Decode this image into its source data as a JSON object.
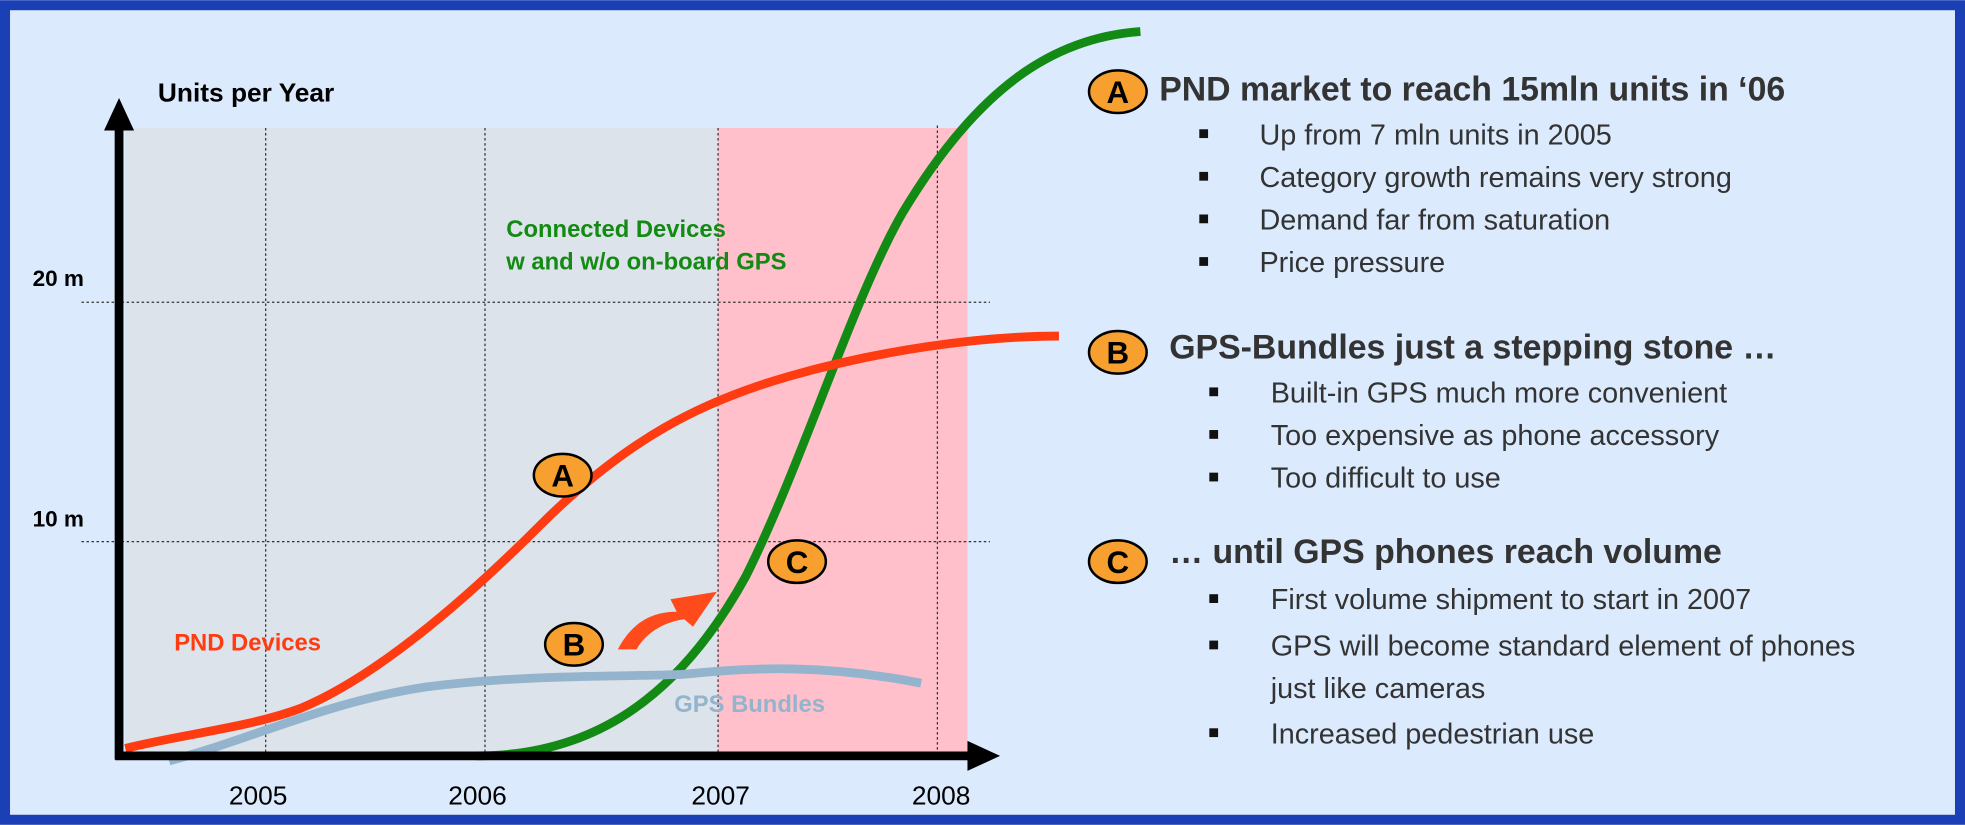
{
  "chart": {
    "y_axis_label": "Units per Year",
    "y_ticks": [
      "20 m",
      "10 m"
    ],
    "x_ticks": [
      "2005",
      "2006",
      "2007",
      "2008"
    ],
    "labels": {
      "connected": [
        "Connected Devices",
        "w and w/o on-board GPS"
      ],
      "pnd": "PND Devices",
      "gps_bundles": "GPS Bundles"
    },
    "markers": [
      "A",
      "B",
      "C"
    ]
  },
  "sections": [
    {
      "marker": "A",
      "title": "PND market to reach 15mln units in ‘06",
      "bullets": [
        [
          "Up from 7 mln units in 2005"
        ],
        [
          "Category growth remains very strong"
        ],
        [
          "Demand far from saturation"
        ],
        [
          "Price pressure"
        ]
      ]
    },
    {
      "marker": "B",
      "title": "GPS-Bundles just a stepping stone …",
      "bullets": [
        [
          "Built-in GPS much more convenient"
        ],
        [
          "Too expensive as phone accessory"
        ],
        [
          "Too difficult to use"
        ]
      ]
    },
    {
      "marker": "C",
      "title": "… until GPS phones reach volume",
      "bullets": [
        [
          "First volume shipment to start in 2007"
        ],
        [
          "GPS will become standard element of phones",
          "just like cameras"
        ],
        [
          "Increased pedestrian use"
        ]
      ]
    }
  ]
}
